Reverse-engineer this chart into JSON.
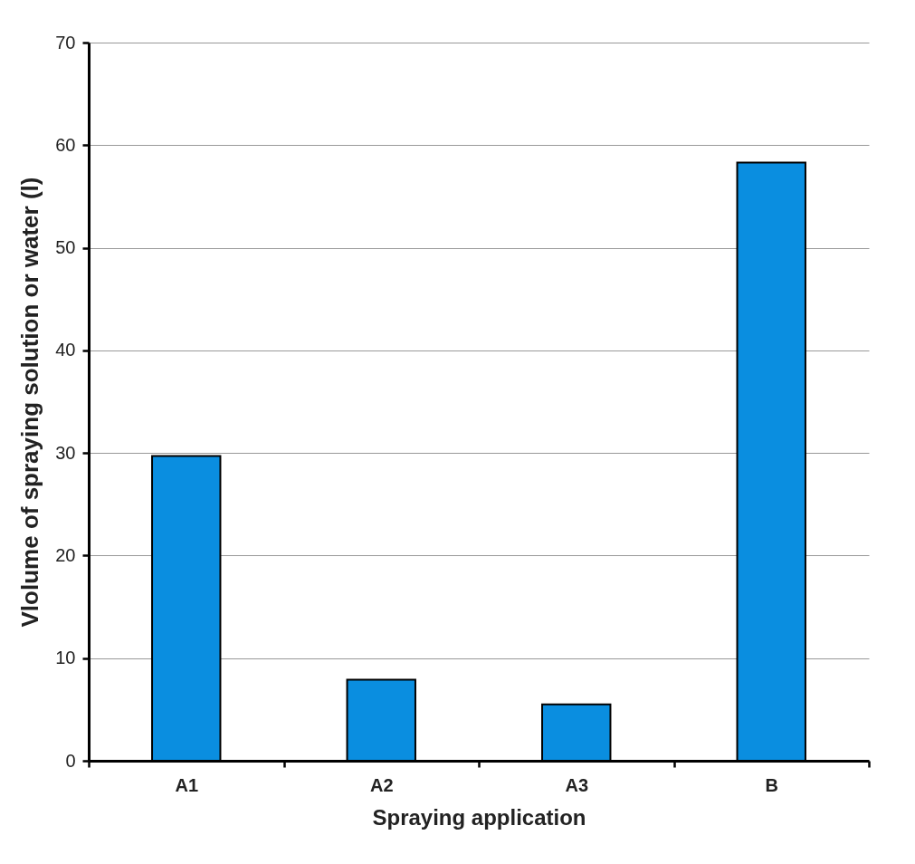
{
  "chart_data": {
    "type": "bar",
    "xlabel": "Spraying application",
    "ylabel": "Vlolume of spraying solution or water (l)",
    "categories": [
      "A1",
      "A2",
      "A3",
      "B"
    ],
    "values": [
      29.7,
      7.9,
      5.5,
      58.3
    ],
    "color": "#0a8ee0",
    "ylim": [
      0,
      70
    ],
    "yticks": [
      0,
      10,
      20,
      30,
      40,
      50,
      60,
      70
    ],
    "grid": "y"
  }
}
